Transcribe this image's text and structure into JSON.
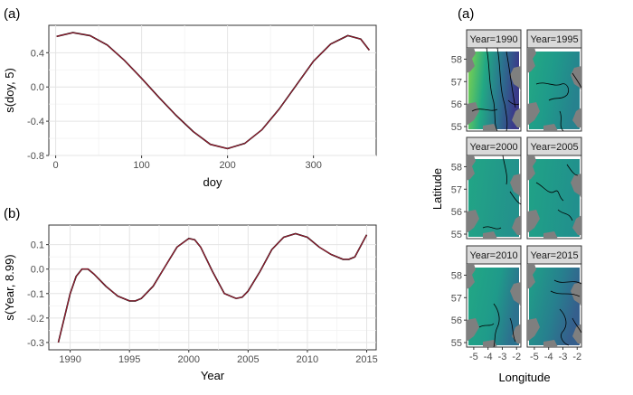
{
  "chart_data": [
    {
      "type": "line",
      "panel_label": "(a)",
      "xlabel": "doy",
      "ylabel": "s(doy, 5)",
      "xlim": [
        -8,
        373
      ],
      "ylim": [
        -0.8,
        0.72
      ],
      "xticks": [
        0,
        100,
        200,
        300
      ],
      "xtick_labels": [
        "0",
        "100",
        "200",
        "300"
      ],
      "yticks": [
        -0.8,
        -0.4,
        0.0,
        0.4
      ],
      "ytick_labels": [
        "-0.8",
        "-0.4",
        "0.0",
        "0.4"
      ],
      "grid": true,
      "series": [
        {
          "x": [
            1,
            20,
            40,
            60,
            80,
            100,
            120,
            140,
            160,
            180,
            200,
            220,
            240,
            260,
            280,
            300,
            320,
            340,
            355,
            365
          ],
          "y": [
            0.59,
            0.635,
            0.6,
            0.49,
            0.31,
            0.1,
            -0.12,
            -0.33,
            -0.52,
            -0.67,
            -0.72,
            -0.66,
            -0.5,
            -0.26,
            0.02,
            0.3,
            0.5,
            0.6,
            0.56,
            0.43
          ],
          "color": "#c0203a"
        }
      ]
    },
    {
      "type": "line",
      "panel_label": "(b)",
      "xlabel": "Year",
      "ylabel": "s(Year, 8.99)",
      "xlim": [
        1988.2,
        2015.8
      ],
      "ylim": [
        -0.33,
        0.18
      ],
      "xticks": [
        1990,
        1995,
        2000,
        2005,
        2010,
        2015
      ],
      "xtick_labels": [
        "1990",
        "1995",
        "2000",
        "2005",
        "2010",
        "2015"
      ],
      "yticks": [
        -0.3,
        -0.2,
        -0.1,
        0.0,
        0.1
      ],
      "ytick_labels": [
        "-0.3",
        "-0.2",
        "-0.1",
        "0.0",
        "0.1"
      ],
      "grid": true,
      "series": [
        {
          "x": [
            1989,
            1989.5,
            1990,
            1990.5,
            1991,
            1991.5,
            1992,
            1993,
            1994,
            1995,
            1995.5,
            1996,
            1997,
            1998,
            1999,
            2000,
            2000.5,
            2001,
            2002,
            2003,
            2004,
            2004.5,
            2005,
            2006,
            2007,
            2008,
            2009,
            2010,
            2011,
            2012,
            2013,
            2013.5,
            2014,
            2015
          ],
          "y": [
            -0.3,
            -0.2,
            -0.1,
            -0.03,
            0.0,
            0.0,
            -0.02,
            -0.07,
            -0.11,
            -0.13,
            -0.13,
            -0.12,
            -0.07,
            0.01,
            0.09,
            0.125,
            0.12,
            0.09,
            -0.01,
            -0.1,
            -0.12,
            -0.115,
            -0.09,
            -0.01,
            0.08,
            0.13,
            0.145,
            0.13,
            0.09,
            0.06,
            0.04,
            0.04,
            0.05,
            0.14
          ],
          "color": "#c0203a"
        }
      ]
    },
    {
      "type": "heatmap",
      "panel_label": "(a)",
      "xlabel": "Longitude",
      "ylabel": "Latitude",
      "facet_titles": [
        "Year=1990",
        "Year=1995",
        "Year=2000",
        "Year=2005",
        "Year=2010",
        "Year=2015"
      ],
      "xticks": [
        -5,
        -4,
        -3,
        -2
      ],
      "xtick_labels": [
        "-5",
        "-4",
        "-3",
        "-2"
      ],
      "yticks": [
        58,
        57,
        56,
        55
      ],
      "ytick_labels": [
        "58",
        "57",
        "56",
        "55"
      ],
      "xlim": [
        -5.5,
        -1.7
      ],
      "ylim": [
        54.8,
        58.5
      ]
    }
  ]
}
